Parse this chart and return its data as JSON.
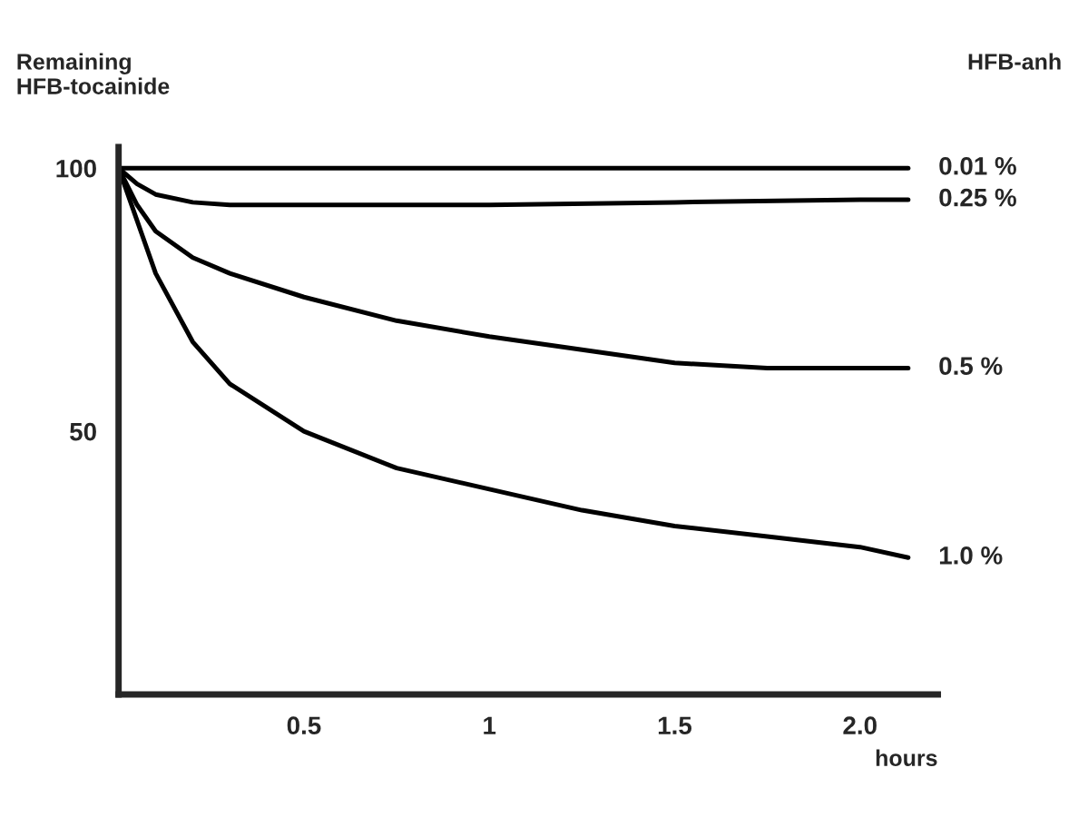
{
  "chart_data": {
    "type": "line",
    "ylabel": "Remaining\nHFB-tocainide",
    "xlabel": "hours",
    "legend_title": "HFB-anh",
    "xlim": [
      0,
      2.21
    ],
    "ylim": [
      0,
      104
    ],
    "xticks": [
      0.5,
      1,
      1.5,
      {
        "value": 2,
        "label": "2.0"
      }
    ],
    "yticks": [
      50,
      100
    ],
    "grid": false,
    "legend": false,
    "marker": "none",
    "line_style": "solid",
    "series": [
      {
        "name": "0.01 %",
        "color": "#000000",
        "x": [
          0,
          0.5,
          1,
          1.5,
          2,
          2.13
        ],
        "values": [
          100,
          100,
          100,
          100,
          100,
          100
        ]
      },
      {
        "name": "0.25 %",
        "color": "#000000",
        "x": [
          0,
          0.05,
          0.1,
          0.2,
          0.3,
          0.5,
          1,
          1.5,
          2,
          2.13
        ],
        "values": [
          100,
          97,
          95,
          93.5,
          93,
          93,
          93,
          93.5,
          94,
          94
        ]
      },
      {
        "name": "0.5 %",
        "color": "#000000",
        "x": [
          0,
          0.05,
          0.1,
          0.2,
          0.3,
          0.5,
          0.75,
          1,
          1.25,
          1.5,
          1.75,
          2,
          2.13
        ],
        "values": [
          100,
          93,
          88,
          83,
          80,
          75.5,
          71,
          68,
          65.5,
          63,
          62,
          62,
          62
        ]
      },
      {
        "name": "1.0 %",
        "color": "#000000",
        "x": [
          0,
          0.05,
          0.1,
          0.2,
          0.3,
          0.5,
          0.75,
          1,
          1.25,
          1.5,
          1.75,
          2,
          2.13
        ],
        "values": [
          100,
          90,
          80,
          67,
          59,
          50,
          43,
          39,
          35,
          32,
          30,
          28,
          26
        ]
      }
    ]
  }
}
